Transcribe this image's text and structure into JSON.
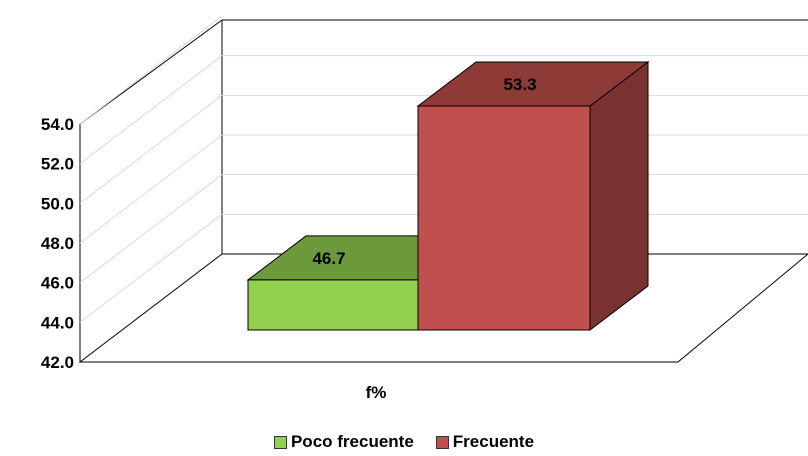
{
  "chart_data": {
    "type": "bar",
    "categories": [
      "f%"
    ],
    "series": [
      {
        "name": "Poco frecuente",
        "values": [
          46.7
        ],
        "color": "#92d050",
        "top_color": "#6c9a3b"
      },
      {
        "name": "Frecuente",
        "values": [
          53.3
        ],
        "color": "#c0504d",
        "top_color": "#8e3b38",
        "side_color": "#7a3230"
      }
    ],
    "data_labels": [
      "46.7",
      "53.3"
    ],
    "yticks": [
      "42.0",
      "44.0",
      "46.0",
      "48.0",
      "50.0",
      "52.0",
      "54.0"
    ],
    "ylim": [
      42,
      54
    ],
    "legend_position": "bottom",
    "three_d": true,
    "grid": true
  }
}
